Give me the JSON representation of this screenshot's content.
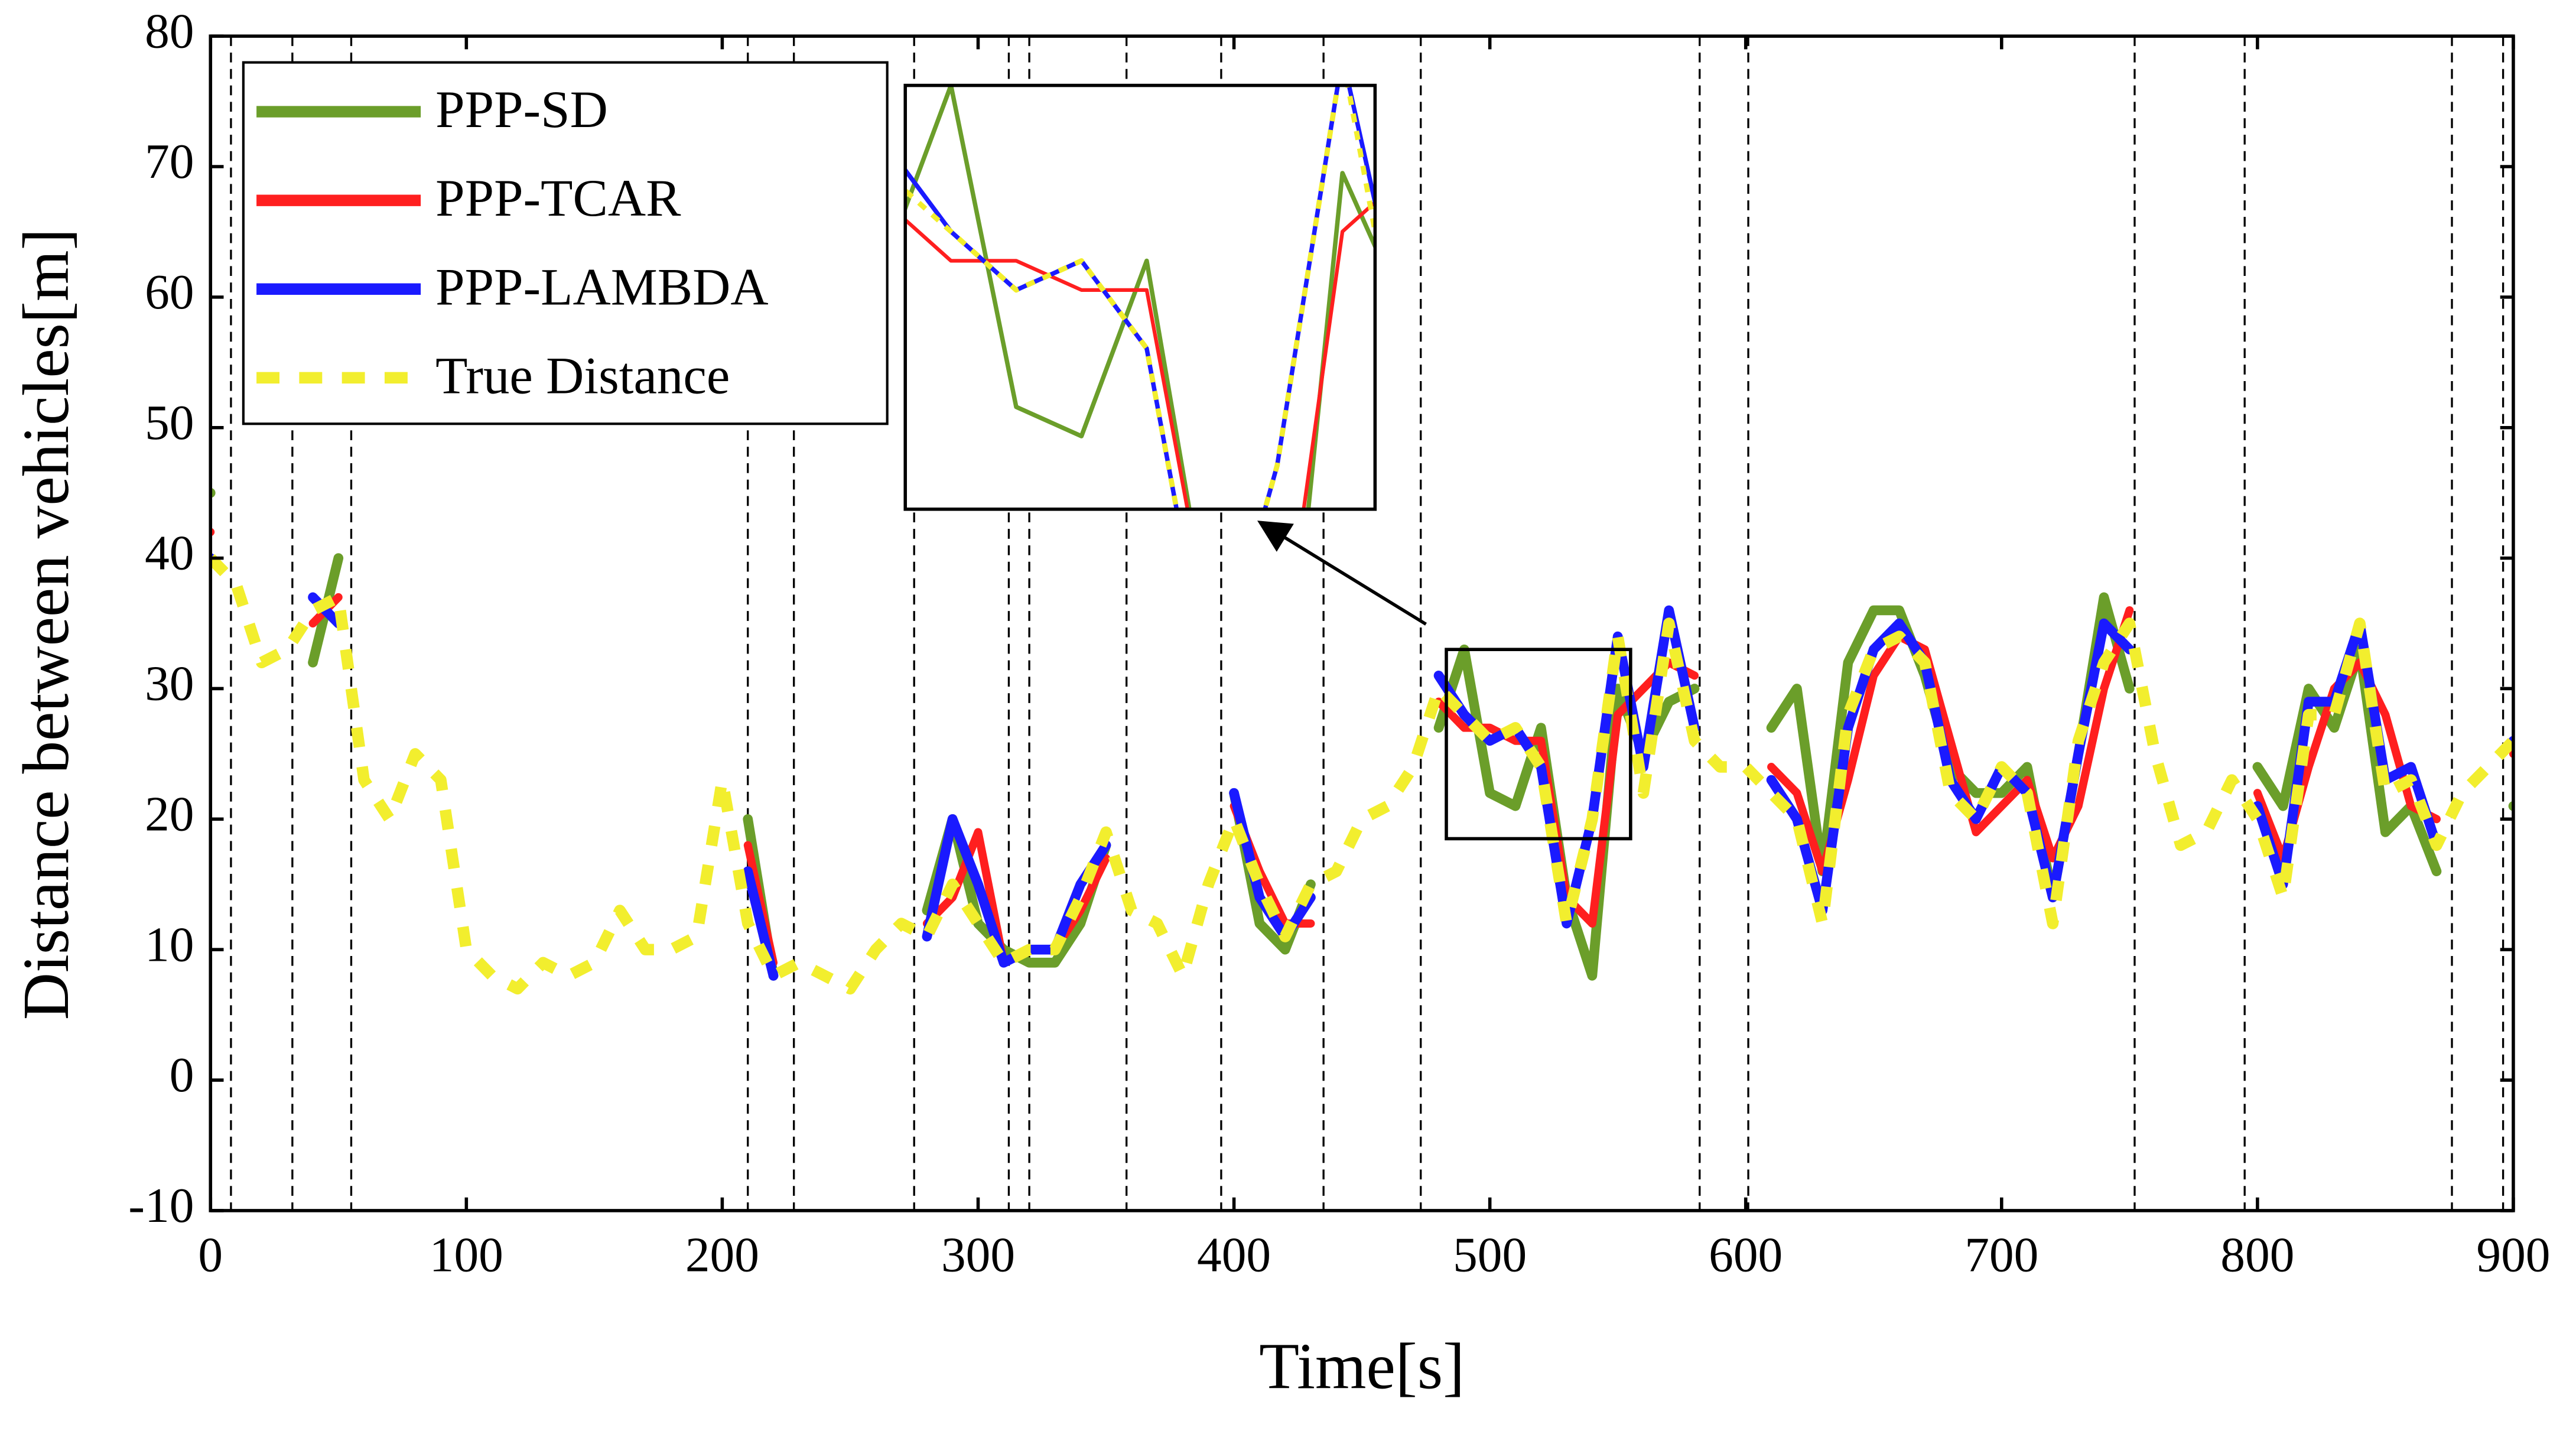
{
  "chart_data": {
    "type": "line",
    "xlabel": "Time[s]",
    "ylabel": "Distance between vehicles[m]",
    "xlim": [
      0,
      900
    ],
    "ylim": [
      -10,
      80
    ],
    "xticks": [
      0,
      100,
      200,
      300,
      400,
      500,
      600,
      700,
      800,
      900
    ],
    "yticks": [
      -10,
      0,
      10,
      20,
      30,
      40,
      50,
      60,
      70,
      80
    ],
    "x": [
      0,
      10,
      20,
      30,
      40,
      50,
      60,
      70,
      80,
      90,
      100,
      110,
      120,
      130,
      140,
      150,
      160,
      170,
      180,
      190,
      200,
      210,
      220,
      230,
      240,
      250,
      260,
      270,
      280,
      290,
      300,
      310,
      320,
      330,
      340,
      350,
      360,
      370,
      380,
      390,
      400,
      410,
      420,
      430,
      440,
      450,
      460,
      470,
      480,
      490,
      500,
      510,
      520,
      530,
      540,
      550,
      560,
      570,
      580,
      590,
      600,
      610,
      620,
      630,
      640,
      650,
      660,
      670,
      680,
      690,
      700,
      710,
      720,
      730,
      740,
      750,
      760,
      770,
      780,
      790,
      800,
      810,
      820,
      830,
      840,
      850,
      860,
      870,
      880,
      890,
      900
    ],
    "series": [
      {
        "name": "PPP-SD",
        "color": "#6b9e2a",
        "dashed": false,
        "values": [
          45,
          null,
          null,
          null,
          32,
          40,
          null,
          null,
          null,
          null,
          null,
          null,
          null,
          null,
          null,
          null,
          null,
          null,
          null,
          null,
          null,
          20,
          8,
          null,
          null,
          null,
          null,
          null,
          13,
          20,
          12,
          10,
          9,
          9,
          12,
          18,
          null,
          null,
          null,
          null,
          22,
          12,
          10,
          15,
          null,
          null,
          null,
          null,
          27,
          33,
          22,
          21,
          27,
          14,
          8,
          30,
          25,
          29,
          30,
          null,
          null,
          27,
          30,
          16,
          32,
          36,
          36,
          31,
          24,
          22,
          22,
          24,
          14,
          25,
          37,
          30,
          null,
          null,
          null,
          null,
          24,
          21,
          30,
          27,
          33,
          19,
          21,
          16,
          null,
          null,
          21
        ]
      },
      {
        "name": "PPP-TCAR",
        "color": "#ff1f1f",
        "dashed": false,
        "values": [
          42,
          null,
          null,
          null,
          35,
          37,
          null,
          null,
          null,
          null,
          null,
          null,
          null,
          null,
          null,
          null,
          null,
          null,
          null,
          null,
          null,
          18,
          9,
          null,
          null,
          null,
          null,
          null,
          12,
          14,
          19,
          9,
          10,
          10,
          13,
          17,
          null,
          null,
          null,
          null,
          21,
          16,
          12,
          12,
          null,
          null,
          null,
          null,
          29,
          27,
          27,
          26,
          26,
          14,
          12,
          28,
          30,
          32,
          31,
          null,
          null,
          24,
          22,
          16,
          23,
          31,
          34,
          33,
          26,
          19,
          21,
          23,
          17,
          21,
          30,
          36,
          null,
          null,
          null,
          null,
          22,
          17,
          24,
          30,
          32,
          28,
          21,
          20,
          null,
          null,
          25
        ]
      },
      {
        "name": "PPP-LAMBDA",
        "color": "#1a1aff",
        "dashed": false,
        "values": [
          40,
          null,
          null,
          null,
          37,
          35,
          null,
          null,
          null,
          null,
          null,
          null,
          null,
          null,
          null,
          null,
          null,
          null,
          null,
          null,
          null,
          16,
          8,
          null,
          null,
          null,
          null,
          null,
          11,
          20,
          15,
          9,
          10,
          10,
          15,
          18,
          null,
          null,
          null,
          null,
          22,
          14,
          11,
          14,
          null,
          null,
          null,
          null,
          31,
          28,
          26,
          27,
          24,
          12,
          20,
          34,
          24,
          36,
          27,
          null,
          null,
          23,
          20,
          13,
          27,
          33,
          35,
          32,
          23,
          20,
          24,
          22,
          14,
          25,
          35,
          33,
          null,
          null,
          null,
          null,
          21,
          15,
          29,
          29,
          35,
          23,
          24,
          18,
          null,
          null,
          26
        ]
      },
      {
        "name": "True Distance",
        "color": "#f2ee2e",
        "dashed": true,
        "values": [
          40,
          38,
          32,
          33,
          36,
          37,
          23,
          20,
          25,
          23,
          10,
          8,
          7,
          9,
          8,
          9,
          13,
          10,
          10,
          11,
          23,
          12,
          8,
          9,
          8,
          7,
          10,
          12,
          11,
          15,
          12,
          9,
          10,
          10,
          14,
          19,
          13,
          12,
          8,
          15,
          20,
          15,
          11,
          15,
          16,
          20,
          21,
          24,
          30,
          28,
          26,
          27,
          24,
          12,
          20,
          34,
          22,
          35,
          26,
          24,
          24,
          22,
          20,
          12,
          28,
          33,
          34,
          32,
          22,
          20,
          24,
          22,
          12,
          26,
          32,
          35,
          25,
          18,
          19,
          23,
          20,
          14,
          28,
          28,
          35,
          22,
          23,
          18,
          22,
          24,
          26
        ]
      }
    ],
    "vlines": [
      8,
      32,
      55,
      210,
      228,
      275,
      312,
      320,
      358,
      395,
      435,
      473,
      582,
      601,
      752,
      795,
      876,
      896
    ],
    "zoom_xlim": [
      483,
      555
    ],
    "zoom_ylim": [
      18.5,
      33
    ],
    "legend": "upper left"
  }
}
